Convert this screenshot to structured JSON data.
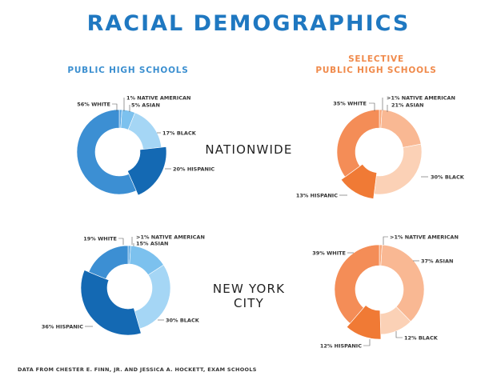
{
  "title": "RACIAL DEMOGRAPHICS",
  "colors": {
    "title": "#1f78c1",
    "public_heading": "#3b8fd0",
    "selective_heading": "#f08a4b",
    "public": {
      "NATIVE AMERICAN": "#5aa7e2",
      "ASIAN": "#7cc1ee",
      "BLACK": "#a5d6f5",
      "HISPANIC": "#1469b3",
      "WHITE": "#3c8fd3"
    },
    "selective": {
      "NATIVE AMERICAN": "#f7a577",
      "ASIAN": "#f9b893",
      "BLACK": "#fbd1b6",
      "HISPANIC": "#f07a35",
      "WHITE": "#f48d57"
    }
  },
  "headings": {
    "public_line1": "PUBLIC HIGH SCHOOLS",
    "selective_line1": "SELECTIVE",
    "selective_line2": "PUBLIC HIGH SCHOOLS"
  },
  "rows": {
    "nationwide": "NATIONWIDE",
    "nyc": "NEW YORK CITY"
  },
  "source": "DATA FROM CHESTER E. FINN, JR. AND JESSICA A. HOCKETT, EXAM SCHOOLS",
  "chart_data": [
    {
      "type": "pie",
      "id": "public-nationwide",
      "slices": [
        {
          "name": "NATIVE AMERICAN",
          "value": 1,
          "label": "1% NATIVE AMERICAN"
        },
        {
          "name": "ASIAN",
          "value": 5,
          "label": "5% ASIAN"
        },
        {
          "name": "BLACK",
          "value": 17,
          "label": "17% BLACK"
        },
        {
          "name": "HISPANIC",
          "value": 20,
          "label": "20% HISPANIC"
        },
        {
          "name": "WHITE",
          "value": 56,
          "label": "56% WHITE"
        }
      ]
    },
    {
      "type": "pie",
      "id": "selective-nationwide",
      "slices": [
        {
          "name": "NATIVE AMERICAN",
          "value": 1,
          "label": ">1% NATIVE AMERICAN"
        },
        {
          "name": "ASIAN",
          "value": 21,
          "label": "21% ASIAN"
        },
        {
          "name": "BLACK",
          "value": 30,
          "label": "30% BLACK"
        },
        {
          "name": "HISPANIC",
          "value": 13,
          "label": "13% HISPANIC"
        },
        {
          "name": "WHITE",
          "value": 35,
          "label": "35% WHITE"
        }
      ]
    },
    {
      "type": "pie",
      "id": "public-nyc",
      "slices": [
        {
          "name": "NATIVE AMERICAN",
          "value": 1,
          "label": ">1% NATIVE AMERICAN"
        },
        {
          "name": "ASIAN",
          "value": 15,
          "label": "15% ASIAN"
        },
        {
          "name": "BLACK",
          "value": 30,
          "label": "30% BLACK"
        },
        {
          "name": "HISPANIC",
          "value": 36,
          "label": "36% HISPANIC"
        },
        {
          "name": "WHITE",
          "value": 19,
          "label": "19% WHITE"
        }
      ]
    },
    {
      "type": "pie",
      "id": "selective-nyc",
      "slices": [
        {
          "name": "NATIVE AMERICAN",
          "value": 1,
          "label": ">1% NATIVE AMERICAN"
        },
        {
          "name": "ASIAN",
          "value": 37,
          "label": "37% ASIAN"
        },
        {
          "name": "BLACK",
          "value": 12,
          "label": "12% BLACK"
        },
        {
          "name": "HISPANIC",
          "value": 12,
          "label": "12% HISPANIC"
        },
        {
          "name": "WHITE",
          "value": 39,
          "label": "39% WHITE"
        }
      ]
    }
  ]
}
